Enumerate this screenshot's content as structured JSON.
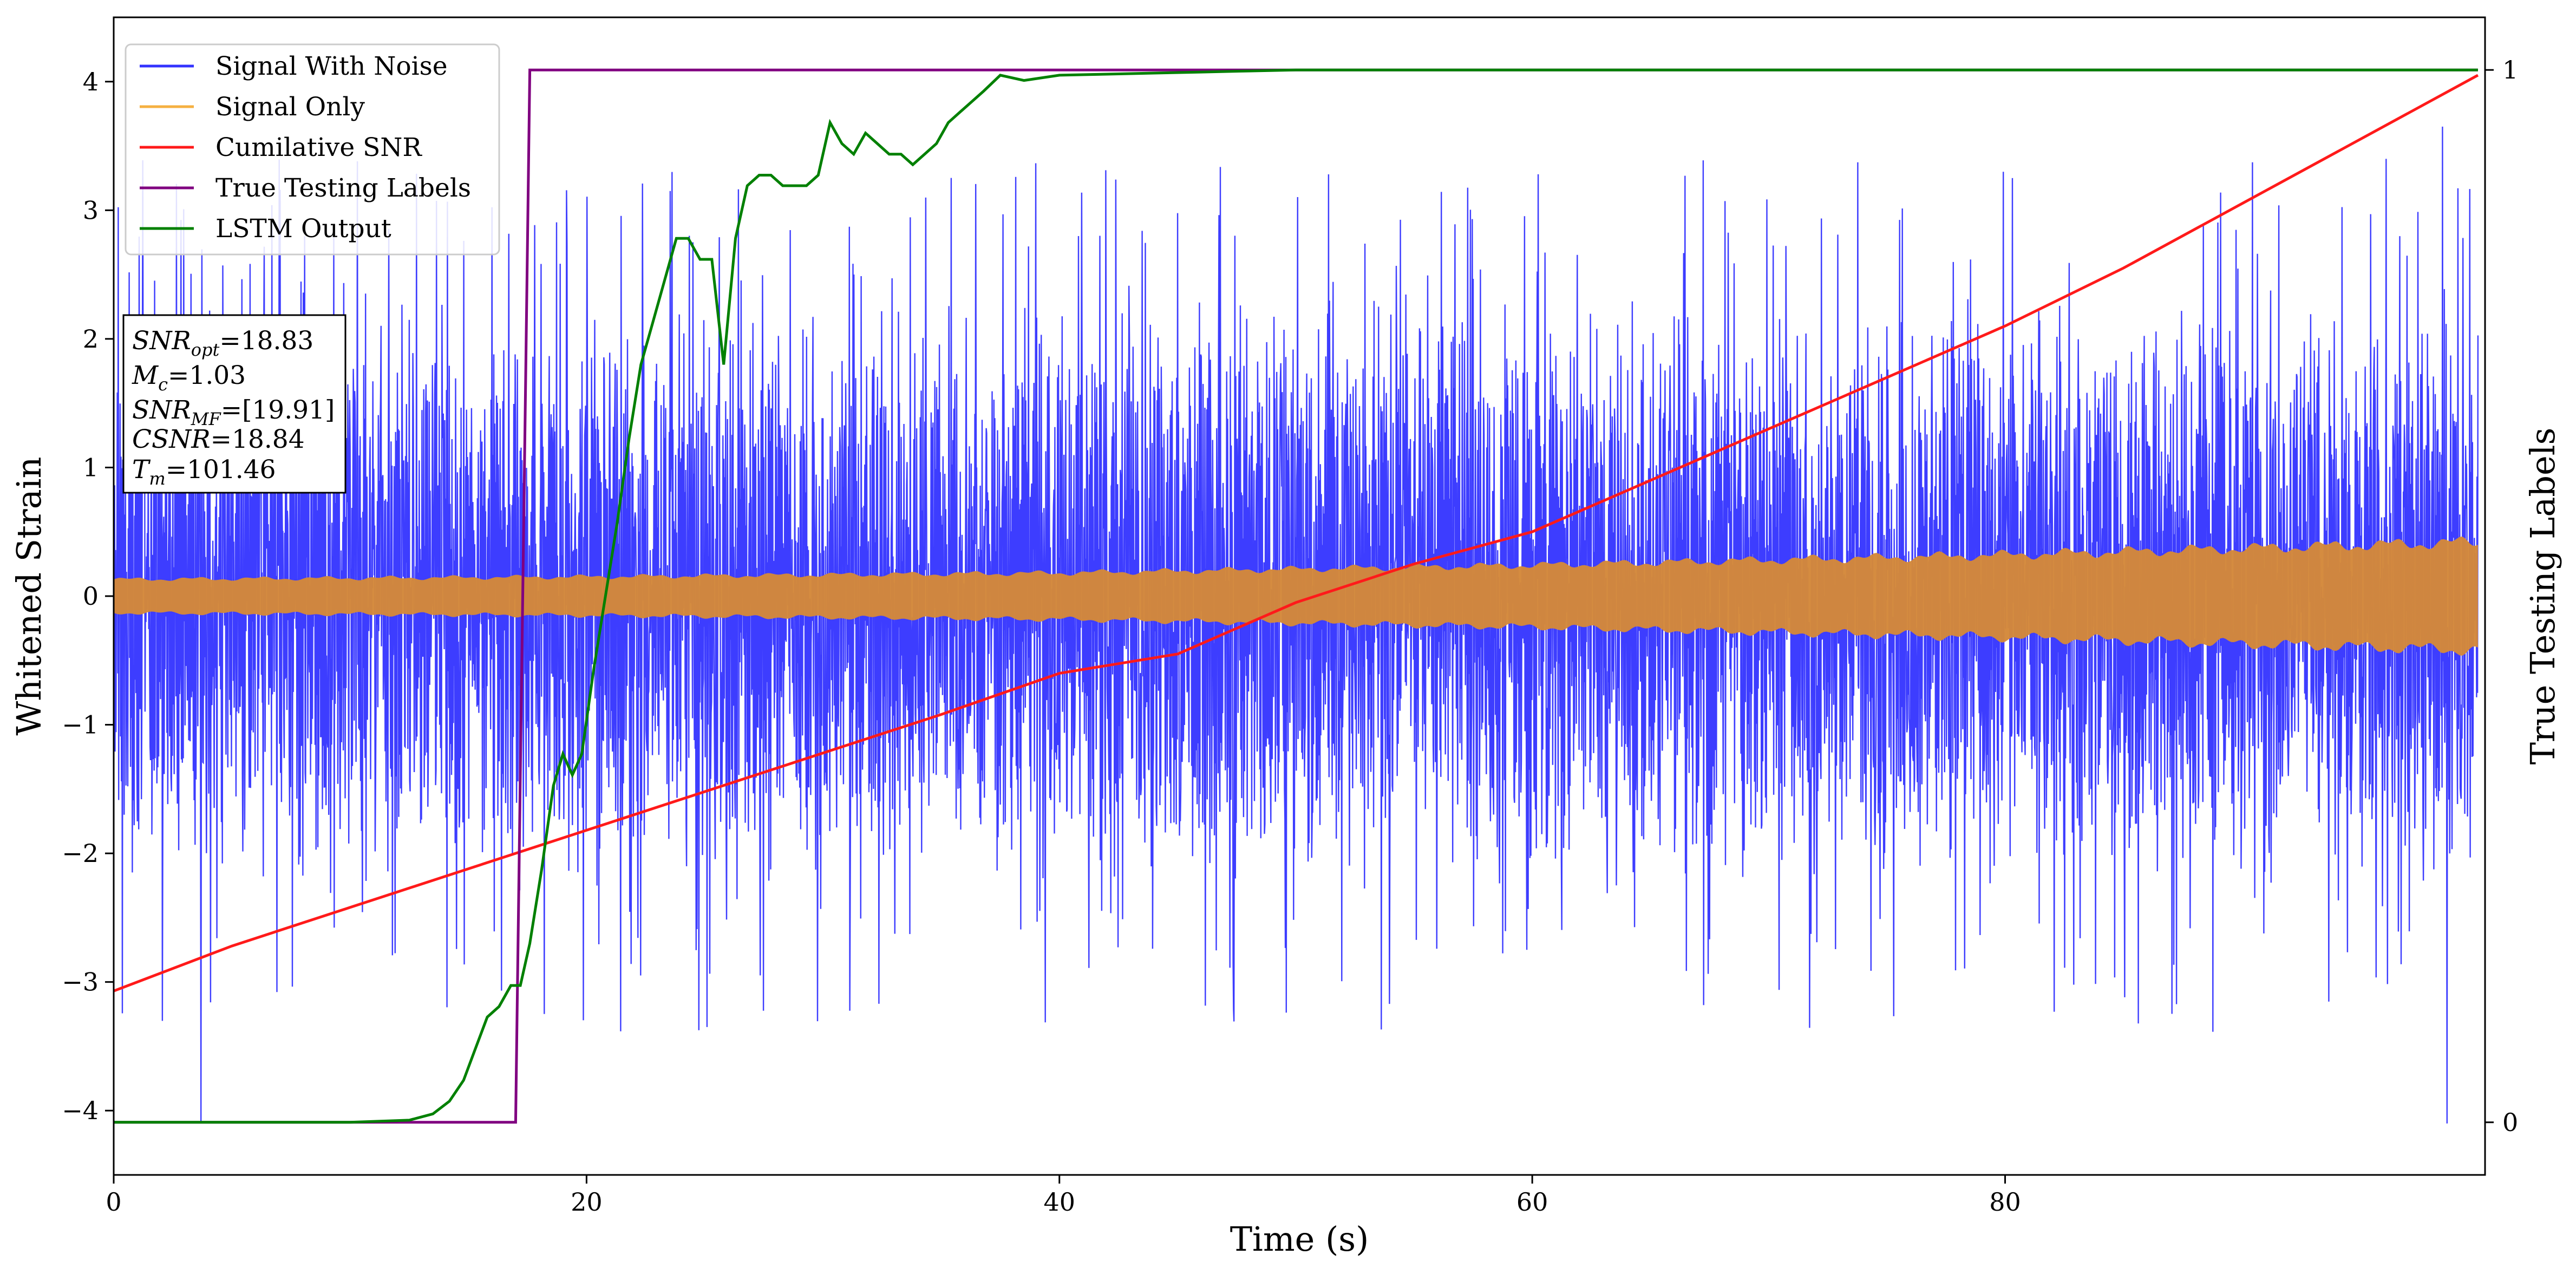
{
  "chart_data": {
    "type": "line",
    "xlabel": "Time (s)",
    "ylabel": "Whitened Strain",
    "y2label": "True Testing Labels",
    "xlim": [
      0,
      100.3
    ],
    "ylim": [
      -4.5,
      4.5
    ],
    "y2lim": [
      -0.05,
      1.05
    ],
    "xticks": [
      0,
      20,
      40,
      60,
      80
    ],
    "yticks": [
      -4,
      -3,
      -2,
      -1,
      0,
      1,
      2,
      3,
      4
    ],
    "y2ticks": [
      0,
      1
    ],
    "grid": false,
    "legend_position": "upper-left",
    "legend": [
      {
        "label": "Signal With Noise",
        "color": "#3333ff"
      },
      {
        "label": "Signal Only",
        "color": "#f5b041"
      },
      {
        "label": "Cumilative SNR",
        "color": "#ff1a1a"
      },
      {
        "label": "True Testing Labels",
        "color": "#800080"
      },
      {
        "label": "LSTM Output",
        "color": "#008000"
      }
    ],
    "annotation": {
      "snr_opt": {
        "sym": "SNR",
        "sub": "opt",
        "val": "=18.83"
      },
      "mc": {
        "sym": "M",
        "sub": "c",
        "val": "=1.03"
      },
      "snr_mf": {
        "sym": "SNR",
        "sub": "MF",
        "val": "=[19.91]"
      },
      "csnr": {
        "sym": "CSNR",
        "sub": "",
        "val": "=18.84"
      },
      "tm": {
        "sym": "T",
        "sub": "m",
        "val": "=101.46"
      }
    },
    "series": [
      {
        "name": "Signal With Noise",
        "color": "#3333ff",
        "noise_band": [
          -2.4,
          2.4
        ],
        "spike_extremes": [
          [
            3.7,
            -4.1
          ],
          [
            98.7,
            -4.1
          ],
          [
            98.5,
            3.65
          ]
        ]
      },
      {
        "name": "Signal Only",
        "color": "#d4883a",
        "amplitude_envelope": {
          "x": [
            0,
            10,
            20,
            40,
            60,
            80,
            100
          ],
          "a": [
            0.13,
            0.14,
            0.15,
            0.18,
            0.24,
            0.32,
            0.42
          ]
        }
      },
      {
        "name": "Cumilative SNR",
        "color": "#ff1a1a",
        "x": [
          0,
          5,
          10,
          15,
          20,
          25,
          30,
          35,
          40,
          45,
          50,
          55,
          60,
          65,
          70,
          75,
          80,
          85,
          90,
          95,
          100
        ],
        "y": [
          -3.07,
          -2.72,
          -2.42,
          -2.12,
          -1.82,
          -1.52,
          -1.22,
          -0.92,
          -0.6,
          -0.45,
          -0.05,
          0.25,
          0.5,
          0.9,
          1.3,
          1.7,
          2.1,
          2.55,
          3.05,
          3.55,
          4.05
        ]
      },
      {
        "name": "True Testing Labels",
        "color": "#800080",
        "axis": "y2",
        "x": [
          0,
          17.0,
          17.6,
          100
        ],
        "y": [
          0,
          0,
          1,
          1
        ]
      },
      {
        "name": "LSTM Output",
        "color": "#008000",
        "axis": "y2",
        "x": [
          0,
          10,
          12.5,
          13.5,
          14.2,
          14.8,
          15.3,
          15.8,
          16.3,
          16.8,
          17.2,
          17.6,
          18.1,
          18.6,
          19.0,
          19.4,
          19.8,
          20.3,
          20.8,
          21.3,
          21.8,
          22.3,
          22.8,
          23.3,
          23.8,
          24.3,
          24.8,
          25.3,
          25.8,
          26.3,
          26.8,
          27.3,
          27.8,
          28.3,
          28.8,
          29.3,
          29.8,
          30.3,
          30.8,
          31.3,
          31.8,
          32.3,
          32.8,
          33.3,
          33.8,
          34.3,
          34.8,
          35.3,
          35.8,
          36.3,
          36.8,
          37.5,
          38.5,
          40,
          42,
          44,
          46,
          48,
          50,
          100
        ],
        "y": [
          0,
          0,
          0.002,
          0.008,
          0.02,
          0.04,
          0.07,
          0.1,
          0.11,
          0.13,
          0.13,
          0.17,
          0.24,
          0.32,
          0.35,
          0.33,
          0.35,
          0.43,
          0.5,
          0.57,
          0.65,
          0.72,
          0.76,
          0.8,
          0.84,
          0.84,
          0.82,
          0.82,
          0.72,
          0.84,
          0.89,
          0.9,
          0.9,
          0.89,
          0.89,
          0.89,
          0.9,
          0.95,
          0.93,
          0.92,
          0.94,
          0.93,
          0.92,
          0.92,
          0.91,
          0.92,
          0.93,
          0.95,
          0.96,
          0.97,
          0.98,
          0.995,
          0.99,
          0.995,
          0.996,
          0.997,
          0.998,
          0.999,
          1.0,
          1.0
        ]
      }
    ]
  }
}
